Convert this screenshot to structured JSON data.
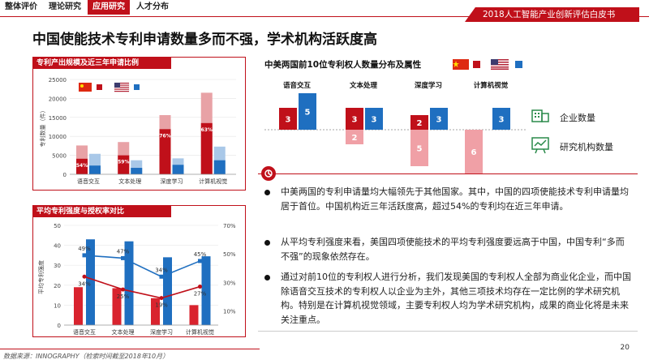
{
  "nav": {
    "tabs": [
      "整体评价",
      "理论研究",
      "应用研究",
      "人才分布"
    ],
    "active_index": 2
  },
  "report_badge": "2018人工智能产业创新评估白皮书",
  "page_title": "中国使能技术专利申请数量多而不强，学术机构活跃度高",
  "panel1": {
    "title": "专利产出规模及近三年申请比例"
  },
  "panel2": {
    "title": "平均专利强度与授权率对比"
  },
  "right": {
    "title": "中美两国前10位专利权人数量分布及属性",
    "legend_enterprise": "企业数量",
    "legend_research": "研究机构数量"
  },
  "bullets": [
    "中美两国的专利申请量均大幅领先于其他国家。其中，中国的四项使能技术专利申请量均居于首位。中国机构近三年活跃度高，超过54%的专利均在近三年申请。",
    "从平均专利强度来看，美国四项使能技术的平均专利强度要远高于中国，中国专利“多而不强”的现象依然存在。",
    "通过对前10位的专利权人进行分析，我们发现美国的专利权人全部为商业化企业，而中国除语音交互技术的专利权人以企业为主外，其他三项技术均存在一定比例的学术研究机构。特别是在计算机视觉领域，主要专利权人均为学术研究机构，成果的商业化将是未来关注重点。"
  ],
  "footer": "数据来源：INNOGRAPHY（检索时间截至2018年10月）",
  "page_number": "20",
  "colors": {
    "accent": "#c0101a",
    "cn_dark": "#c0101a",
    "cn_light": "#e8a2a6",
    "us_dark": "#1f6fc0",
    "us_light": "#a9c8e8"
  },
  "chart_data": [
    {
      "type": "bar",
      "title": "专利产出规模及近三年申请比例",
      "ylabel": "专利数量（件）",
      "ylim": [
        0,
        25000
      ],
      "yticks": [
        "0",
        "5000",
        "10000",
        "15000",
        "20000",
        "25000"
      ],
      "categories": [
        "语音交互",
        "文本处理",
        "深度学习",
        "计算机视觉"
      ],
      "series": [
        {
          "name": "中国总量",
          "values": [
            7600,
            8500,
            15600,
            21500
          ]
        },
        {
          "name": "中国近三年",
          "values": [
            4100,
            5000,
            11900,
            13500
          ]
        },
        {
          "name": "美国总量",
          "values": [
            5400,
            3700,
            4200,
            7300
          ]
        },
        {
          "name": "美国近三年",
          "values": [
            2300,
            1700,
            2500,
            3700
          ]
        }
      ],
      "share_labels": [
        "54%",
        "59%",
        "76%",
        "63%"
      ]
    },
    {
      "type": "bar",
      "title": "平均专利强度与授权率对比",
      "ylabel": "平均专利强度",
      "ylim": [
        0,
        50
      ],
      "yticks": [
        "0",
        "10",
        "20",
        "30",
        "40",
        "50"
      ],
      "y2lim": [
        0,
        70
      ],
      "y2ticks": [
        "10%",
        "30%",
        "50%",
        "70%"
      ],
      "categories": [
        "语音交互",
        "文本处理",
        "深度学习",
        "计算机视觉"
      ],
      "series": [
        {
          "name": "中国平均专利强度",
          "values": [
            19,
            18.5,
            13.5,
            10
          ]
        },
        {
          "name": "美国平均专利强度",
          "values": [
            43,
            42,
            34,
            34.5
          ]
        },
        {
          "name": "美国授权率",
          "values": [
            49,
            47,
            34,
            45
          ],
          "labels": [
            "49%",
            "47%",
            "34%",
            "45%"
          ]
        },
        {
          "name": "中国授权率",
          "values": [
            34,
            25,
            19,
            27
          ],
          "labels": [
            "34%",
            "25%",
            "19%",
            "27%"
          ]
        }
      ]
    },
    {
      "type": "bar",
      "title": "中美两国前10位专利权人数量分布及属性",
      "categories": [
        "语音交互",
        "文本处理",
        "深度学习",
        "计算机视觉"
      ],
      "series": [
        {
          "name": "中国企业",
          "values": [
            3,
            3,
            2,
            0
          ]
        },
        {
          "name": "美国企业",
          "values": [
            5,
            3,
            3,
            3
          ]
        },
        {
          "name": "中国研究机构",
          "values": [
            0,
            2,
            5,
            6
          ]
        },
        {
          "name": "美国研究机构",
          "values": [
            0,
            0,
            0,
            0
          ]
        }
      ]
    }
  ]
}
